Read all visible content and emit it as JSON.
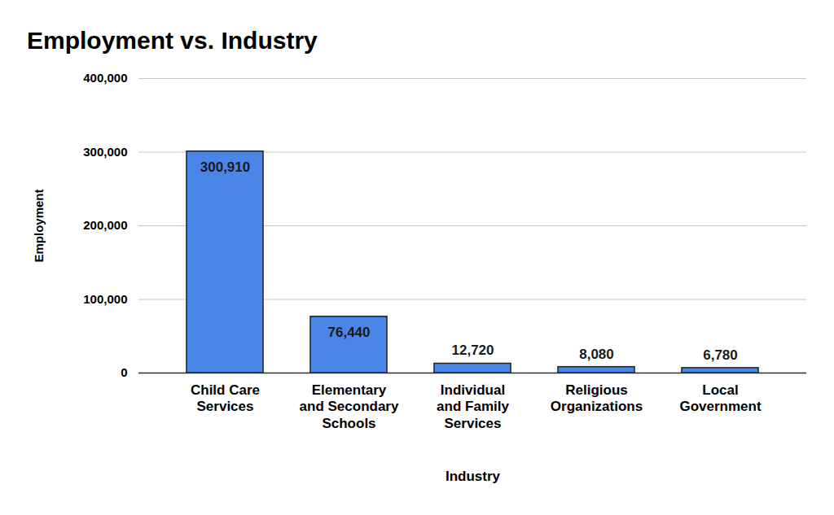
{
  "chart_data": {
    "type": "bar",
    "title": "Employment vs. Industry",
    "x_label": "Industry",
    "y_label": "Employment",
    "categories": [
      "Child Care Services",
      "Elementary and Secondary Schools",
      "Individual and Family Services",
      "Religious Organizations",
      "Local Government"
    ],
    "values": [
      300910,
      76440,
      12720,
      8080,
      6780
    ],
    "value_labels": [
      "300,910",
      "76,440",
      "12,720",
      "8,080",
      "6,780"
    ],
    "color": "#4a86e8",
    "ylim": [
      0,
      400000
    ],
    "yticks": [
      0,
      {
        "value": 100000,
        "label": "100,000"
      },
      {
        "value": 200000,
        "label": "200,000"
      },
      {
        "value": 300000,
        "label": "300,000"
      },
      {
        "value": 400000,
        "label": "400,000"
      }
    ],
    "grid": true,
    "data_labels": true
  }
}
